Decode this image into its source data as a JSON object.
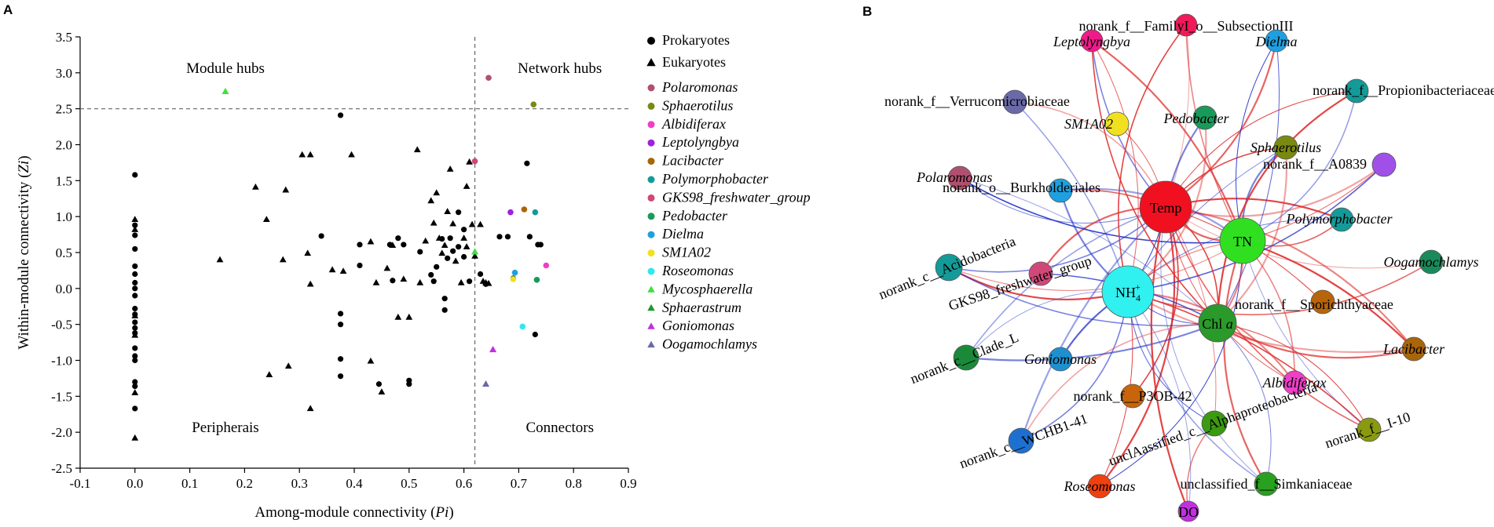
{
  "panel_a_label": "A",
  "panel_b_label": "B",
  "chart_data": [
    {
      "type": "scatter",
      "title": "",
      "xlabel_main": "Among-module connectivity (",
      "xlabel_italic": "Pi",
      "xlabel_end": ")",
      "ylabel_main": "Within-module connectivity (",
      "ylabel_italic": "Zi",
      "ylabel_end": ")",
      "xlim": [
        -0.1,
        0.9
      ],
      "ylim": [
        -2.5,
        3.5
      ],
      "xticks": [
        "-0.1",
        "0.0",
        "0.1",
        "0.2",
        "0.3",
        "0.4",
        "0.5",
        "0.6",
        "0.7",
        "0.8",
        "0.9"
      ],
      "xtick_values": [
        -0.1,
        0.0,
        0.1,
        0.2,
        0.3,
        0.4,
        0.5,
        0.6,
        0.7,
        0.8,
        0.9
      ],
      "yticks": [
        "-2.5",
        "-2.0",
        "-1.5",
        "-1.0",
        "-0.5",
        "0.0",
        "0.5",
        "1.0",
        "1.5",
        "2.0",
        "2.5",
        "3.0",
        "3.5"
      ],
      "ytick_values": [
        -2.5,
        -2.0,
        -1.5,
        -1.0,
        -0.5,
        0.0,
        0.5,
        1.0,
        1.5,
        2.0,
        2.5,
        3.0,
        3.5
      ],
      "thresholds": {
        "pi": 0.62,
        "zi": 2.5
      },
      "quadrants": {
        "module_hubs": "Module hubs",
        "network_hubs": "Network hubs",
        "peripherals": "Peripherais",
        "connectors": "Connectors"
      },
      "legend_shapes": [
        {
          "label": "Prokaryotes",
          "marker": "circle"
        },
        {
          "label": "Eukaryotes",
          "marker": "triangle"
        }
      ],
      "legend_taxa": [
        {
          "label": "Polaromonas",
          "color": "#b0506e",
          "marker": "circle"
        },
        {
          "label": "Sphaerotilus",
          "color": "#7a8a10",
          "marker": "circle"
        },
        {
          "label": "Albidiferax",
          "color": "#ee3fc8",
          "marker": "circle"
        },
        {
          "label": "Leptolyngbya",
          "color": "#a020e0",
          "marker": "circle"
        },
        {
          "label": "Lacibacter",
          "color": "#a8650a",
          "marker": "circle"
        },
        {
          "label": "Polymorphobacter",
          "color": "#149a98",
          "marker": "circle"
        },
        {
          "label": "GKS98_freshwater_group",
          "color": "#d04878",
          "marker": "circle"
        },
        {
          "label": "Pedobacter",
          "color": "#1a9a5a",
          "marker": "circle"
        },
        {
          "label": "Dielma",
          "color": "#1ea0e0",
          "marker": "circle"
        },
        {
          "label": "SM1A02",
          "color": "#f0e020",
          "marker": "circle"
        },
        {
          "label": "Roseomonas",
          "color": "#30e8f0",
          "marker": "circle"
        },
        {
          "label": "Mycosphaerella",
          "color": "#40e040",
          "marker": "triangle"
        },
        {
          "label": "Sphaerastrum",
          "color": "#1a9a2a",
          "marker": "triangle"
        },
        {
          "label": "Goniomonas",
          "color": "#c030e0",
          "marker": "triangle"
        },
        {
          "label": "Oogamochlamys",
          "color": "#6a6aa8",
          "marker": "triangle"
        }
      ],
      "points_colored": [
        {
          "taxon": "Polaromonas",
          "x": 0.645,
          "y": 2.93
        },
        {
          "taxon": "Sphaerotilus",
          "x": 0.727,
          "y": 2.56
        },
        {
          "taxon": "Albidiferax",
          "x": 0.75,
          "y": 0.32
        },
        {
          "taxon": "Leptolyngbya",
          "x": 0.685,
          "y": 1.06
        },
        {
          "taxon": "Lacibacter",
          "x": 0.71,
          "y": 1.1
        },
        {
          "taxon": "Polymorphobacter",
          "x": 0.73,
          "y": 1.06
        },
        {
          "taxon": "GKS98_freshwater_group",
          "x": 0.62,
          "y": 1.77
        },
        {
          "taxon": "Pedobacter",
          "x": 0.733,
          "y": 0.12
        },
        {
          "taxon": "Dielma",
          "x": 0.693,
          "y": 0.22
        },
        {
          "taxon": "SM1A02",
          "x": 0.69,
          "y": 0.13
        },
        {
          "taxon": "Roseomonas",
          "x": 0.707,
          "y": -0.53
        },
        {
          "taxon": "Mycosphaerella",
          "x": 0.165,
          "y": 2.74
        },
        {
          "taxon": "Mycosphaerella",
          "x": 0.62,
          "y": 0.51
        },
        {
          "taxon": "Goniomonas",
          "x": 0.653,
          "y": -0.85
        },
        {
          "taxon": "Oogamochlamys",
          "x": 0.64,
          "y": -1.33
        }
      ],
      "points_prokaryotes": [
        [
          0.0,
          1.58
        ],
        [
          0.0,
          0.88
        ],
        [
          0.0,
          0.74
        ],
        [
          0.0,
          0.55
        ],
        [
          0.0,
          0.31
        ],
        [
          0.0,
          0.2
        ],
        [
          0.0,
          0.08
        ],
        [
          0.0,
          0.0
        ],
        [
          0.0,
          -0.1
        ],
        [
          0.0,
          -0.28
        ],
        [
          0.0,
          -0.36
        ],
        [
          0.0,
          -0.47
        ],
        [
          0.0,
          -0.55
        ],
        [
          0.0,
          -0.62
        ],
        [
          0.0,
          -0.83
        ],
        [
          0.0,
          -0.94
        ],
        [
          0.0,
          -1.0
        ],
        [
          0.0,
          -1.3
        ],
        [
          0.0,
          -1.36
        ],
        [
          0.0,
          -1.67
        ],
        [
          0.34,
          0.73
        ],
        [
          0.375,
          2.41
        ],
        [
          0.375,
          -0.35
        ],
        [
          0.375,
          -0.5
        ],
        [
          0.375,
          -0.98
        ],
        [
          0.375,
          -1.22
        ],
        [
          0.41,
          0.61
        ],
        [
          0.41,
          0.32
        ],
        [
          0.445,
          -1.33
        ],
        [
          0.465,
          0.61
        ],
        [
          0.47,
          0.11
        ],
        [
          0.48,
          0.7
        ],
        [
          0.49,
          0.61
        ],
        [
          0.5,
          -1.28
        ],
        [
          0.5,
          -1.33
        ],
        [
          0.52,
          0.51
        ],
        [
          0.54,
          0.19
        ],
        [
          0.545,
          0.1
        ],
        [
          0.55,
          0.3
        ],
        [
          0.56,
          0.69
        ],
        [
          0.565,
          -0.3
        ],
        [
          0.565,
          -0.14
        ],
        [
          0.57,
          0.42
        ],
        [
          0.575,
          0.7
        ],
        [
          0.58,
          0.52
        ],
        [
          0.59,
          0.58
        ],
        [
          0.59,
          1.06
        ],
        [
          0.6,
          0.82
        ],
        [
          0.6,
          0.44
        ],
        [
          0.61,
          0.1
        ],
        [
          0.63,
          0.2
        ],
        [
          0.64,
          0.06
        ],
        [
          0.665,
          0.72
        ],
        [
          0.68,
          0.72
        ],
        [
          0.69,
          0.14
        ],
        [
          0.715,
          1.74
        ],
        [
          0.72,
          0.72
        ],
        [
          0.735,
          0.61
        ],
        [
          0.74,
          0.61
        ],
        [
          0.73,
          -0.64
        ]
      ],
      "points_eukaryotes": [
        [
          0.0,
          0.96
        ],
        [
          0.0,
          0.82
        ],
        [
          0.0,
          -0.38
        ],
        [
          0.0,
          -0.65
        ],
        [
          0.0,
          -1.45
        ],
        [
          0.0,
          -2.08
        ],
        [
          0.155,
          0.4
        ],
        [
          0.22,
          1.41
        ],
        [
          0.24,
          0.96
        ],
        [
          0.245,
          -1.2
        ],
        [
          0.27,
          0.4
        ],
        [
          0.275,
          1.37
        ],
        [
          0.28,
          -1.08
        ],
        [
          0.305,
          1.86
        ],
        [
          0.315,
          0.49
        ],
        [
          0.32,
          1.86
        ],
        [
          0.32,
          0.06
        ],
        [
          0.32,
          -1.67
        ],
        [
          0.36,
          0.26
        ],
        [
          0.38,
          0.24
        ],
        [
          0.395,
          1.86
        ],
        [
          0.43,
          0.65
        ],
        [
          0.43,
          -1.01
        ],
        [
          0.44,
          0.08
        ],
        [
          0.45,
          -1.44
        ],
        [
          0.46,
          0.28
        ],
        [
          0.47,
          0.6
        ],
        [
          0.48,
          -0.4
        ],
        [
          0.49,
          0.13
        ],
        [
          0.5,
          -0.4
        ],
        [
          0.515,
          1.93
        ],
        [
          0.52,
          0.08
        ],
        [
          0.53,
          0.66
        ],
        [
          0.54,
          1.22
        ],
        [
          0.545,
          0.91
        ],
        [
          0.55,
          1.33
        ],
        [
          0.555,
          0.7
        ],
        [
          0.56,
          0.49
        ],
        [
          0.565,
          0.6
        ],
        [
          0.57,
          1.07
        ],
        [
          0.575,
          1.66
        ],
        [
          0.58,
          0.9
        ],
        [
          0.585,
          0.38
        ],
        [
          0.595,
          0.08
        ],
        [
          0.6,
          0.7
        ],
        [
          0.605,
          0.58
        ],
        [
          0.605,
          1.42
        ],
        [
          0.61,
          1.76
        ],
        [
          0.615,
          0.89
        ],
        [
          0.62,
          0.45
        ],
        [
          0.63,
          0.89
        ],
        [
          0.635,
          0.1
        ],
        [
          0.64,
          0.08
        ],
        [
          0.645,
          0.07
        ]
      ]
    },
    {
      "type": "network",
      "title": "",
      "edge_colors": {
        "positive": "#e03030",
        "negative": "#2030c8"
      },
      "nodes": [
        {
          "id": "Temp",
          "label": "Temp",
          "color": "#f01020",
          "size": "large",
          "role": "env"
        },
        {
          "id": "TN",
          "label": "TN",
          "color": "#30e020",
          "size": "large",
          "role": "env"
        },
        {
          "id": "NH4",
          "label": "NH",
          "sub": "4",
          "sup": "+",
          "color": "#30f0f0",
          "size": "large",
          "role": "env"
        },
        {
          "id": "Chla",
          "label": "Chl ",
          "label_italic": "a",
          "color": "#2a9a2a",
          "size": "medium",
          "role": "env"
        },
        {
          "id": "DO",
          "label": "DO",
          "color": "#c030e0",
          "size": "small",
          "role": "env"
        },
        {
          "id": "FamilyI",
          "label": "norank_f__FamilyI_o__SubsectionIII",
          "color": "#f01a5a",
          "italic": false
        },
        {
          "id": "Leptolyngbya",
          "label": "Leptolyngbya",
          "color": "#f01a8a",
          "italic": true
        },
        {
          "id": "Dielma",
          "label": "Dielma",
          "color": "#1ea0e0",
          "italic": true
        },
        {
          "id": "Propioni",
          "label": "norank_f__Propionibacteriaceae",
          "color": "#149a98",
          "italic": false
        },
        {
          "id": "Verruco",
          "label": "norank_f__Verrucomicrobiaceae",
          "color": "#6a6aa8",
          "italic": false
        },
        {
          "id": "Pedobacter",
          "label": "Pedobacter",
          "color": "#1a9a5a",
          "italic": true
        },
        {
          "id": "SM1A02",
          "label": "SM1A02",
          "color": "#f0e020",
          "italic": true
        },
        {
          "id": "Sphaerotilus",
          "label": "Sphaerotilus",
          "color": "#7a8a10",
          "italic": true
        },
        {
          "id": "A0839",
          "label": "norank_f__A0839",
          "color": "#a050e8",
          "italic": false
        },
        {
          "id": "Polaromonas",
          "label": "Polaromonas",
          "color": "#b0506e",
          "italic": true
        },
        {
          "id": "Burkholderiales",
          "label": "norank_o__Burkholderiales",
          "color": "#1ea0e0",
          "italic": false
        },
        {
          "id": "Polymorphobacter",
          "label": "Polymorphobacter",
          "color": "#149a98",
          "italic": true
        },
        {
          "id": "Oogamochlamys",
          "label": "Oogamochlamys",
          "color": "#1a8a5a",
          "italic": true
        },
        {
          "id": "Acidobacteria",
          "label": "norank_c__Acidobacteria",
          "color": "#149a98",
          "italic": false
        },
        {
          "id": "GKS98",
          "label": "GKS98_freshwater_group",
          "color": "#d04878",
          "italic": false
        },
        {
          "id": "Sporichthyaceae",
          "label": "norank_f__Sporichthyaceae",
          "color": "#b8650a",
          "italic": false
        },
        {
          "id": "CladeL",
          "label": "norank_c__Clade_L",
          "color": "#1a8a3a",
          "italic": false
        },
        {
          "id": "Goniomonas",
          "label": "Goniomonas",
          "color": "#1e90d0",
          "italic": true
        },
        {
          "id": "Lacibacter",
          "label": "Lacibacter",
          "color": "#a8650a",
          "italic": true
        },
        {
          "id": "Albidiferax",
          "label": "Albidiferax",
          "color": "#ee3fc8",
          "italic": true
        },
        {
          "id": "P3OB42",
          "label": "norank_f__P3OB-42",
          "color": "#c8650a",
          "italic": false
        },
        {
          "id": "WCHB141",
          "label": "norank_c__WCHB1-41",
          "color": "#1e70d0",
          "italic": false
        },
        {
          "id": "Alphaproteo",
          "label": "unclAassified_c__Alphaproteobacteria",
          "color": "#3a9a10",
          "italic": false
        },
        {
          "id": "I10",
          "label": "norank_f__I-10",
          "color": "#8a9a10",
          "italic": false
        },
        {
          "id": "Roseomonas",
          "label": "Roseomonas",
          "color": "#f04010",
          "italic": true
        },
        {
          "id": "Simkaniaceae",
          "label": "unclassified_f__Simkaniaceae",
          "color": "#2aa020",
          "italic": false
        }
      ]
    }
  ]
}
